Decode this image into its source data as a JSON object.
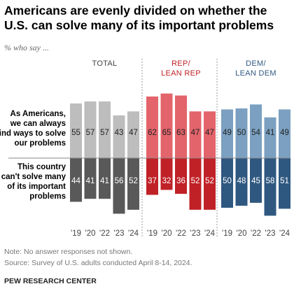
{
  "title": "Americans are evenly divided on whether the U.S. can solve many of its important problems",
  "subtitle": "% who say ...",
  "note": "Note: No answer responses not shown.",
  "source": "Source: Survey of U.S. adults conducted April 8-14, 2024.",
  "org": "PEW RESEARCH CENTER",
  "chart_data": {
    "type": "bar",
    "categories": [
      "'19",
      "'20",
      "'22",
      "'23",
      "'24"
    ],
    "row_labels": [
      [
        "As Americans,",
        "we can always",
        "find ways to solve",
        "our problems"
      ],
      [
        "This country",
        "can't solve many",
        "of its important",
        "problems"
      ]
    ],
    "groups": [
      {
        "label": [
          "TOTAL"
        ],
        "top_color": "#bdbdbd",
        "bottom_color": "#595959",
        "top_values": [
          55,
          57,
          57,
          43,
          47
        ],
        "bottom_values": [
          44,
          41,
          41,
          56,
          52
        ]
      },
      {
        "label": [
          "REP/",
          "LEAN REP"
        ],
        "top_color": "#e3646b",
        "bottom_color": "#c02127",
        "top_values": [
          62,
          65,
          63,
          47,
          47
        ],
        "bottom_values": [
          37,
          32,
          36,
          52,
          52
        ],
        "label_color": "#c02127"
      },
      {
        "label": [
          "DEM/",
          "LEAN DEM"
        ],
        "top_color": "#7ba0c1",
        "bottom_color": "#2f5880",
        "top_values": [
          49,
          50,
          54,
          41,
          49
        ],
        "bottom_values": [
          50,
          48,
          45,
          58,
          51
        ],
        "label_color": "#2f5880"
      }
    ]
  }
}
